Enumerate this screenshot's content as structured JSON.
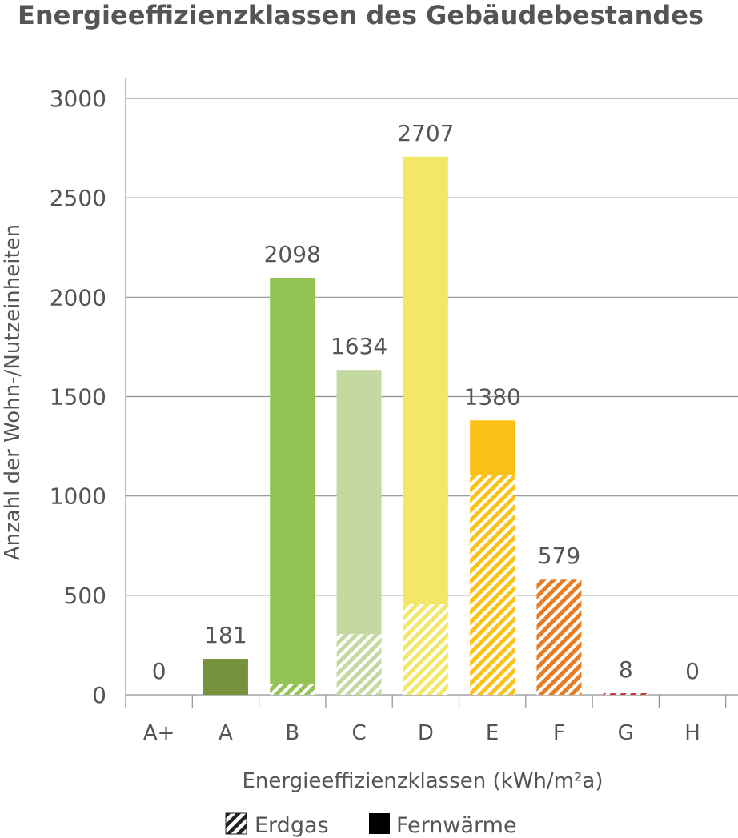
{
  "chart_data": {
    "type": "bar",
    "title": "Energieeffizienzklassen des Gebäudebestandes",
    "xlabel": "Energieeffizienzklassen (kWh/m²a)",
    "ylabel": "Anzahl der Wohn-/Nutzeinheiten",
    "ylim": [
      0,
      3000
    ],
    "yticks": [
      0,
      500,
      1000,
      1500,
      2000,
      2500,
      3000
    ],
    "grid": true,
    "legend_position": "bottom",
    "categories": [
      "A+",
      "A",
      "B",
      "C",
      "D",
      "E",
      "F",
      "G",
      "H"
    ],
    "totals": [
      "0",
      "181",
      "2098",
      "1634",
      "2707",
      "1380",
      "579",
      "8",
      "0"
    ],
    "series": [
      {
        "name": "Erdgas",
        "pattern": "hatched",
        "values": [
          0,
          0,
          55,
          305,
          455,
          1105,
          579,
          8,
          0
        ]
      },
      {
        "name": "Fernwärme",
        "pattern": "solid",
        "values": [
          0,
          181,
          2043,
          1329,
          2252,
          275,
          0,
          0,
          0
        ]
      }
    ],
    "colors": [
      "#ffffff",
      "#76923c",
      "#92c353",
      "#c4d9a2",
      "#f3e767",
      "#fbc117",
      "#e67d24",
      "#c8353a",
      "#ffffff"
    ]
  },
  "legend": [
    {
      "key": "erdgas",
      "label": "Erdgas",
      "swatch": "hatched"
    },
    {
      "key": "fernwaerme",
      "label": "Fernwärme",
      "swatch": "solid"
    }
  ],
  "grid_color": "#8f8f8f",
  "text_color": "#555555"
}
